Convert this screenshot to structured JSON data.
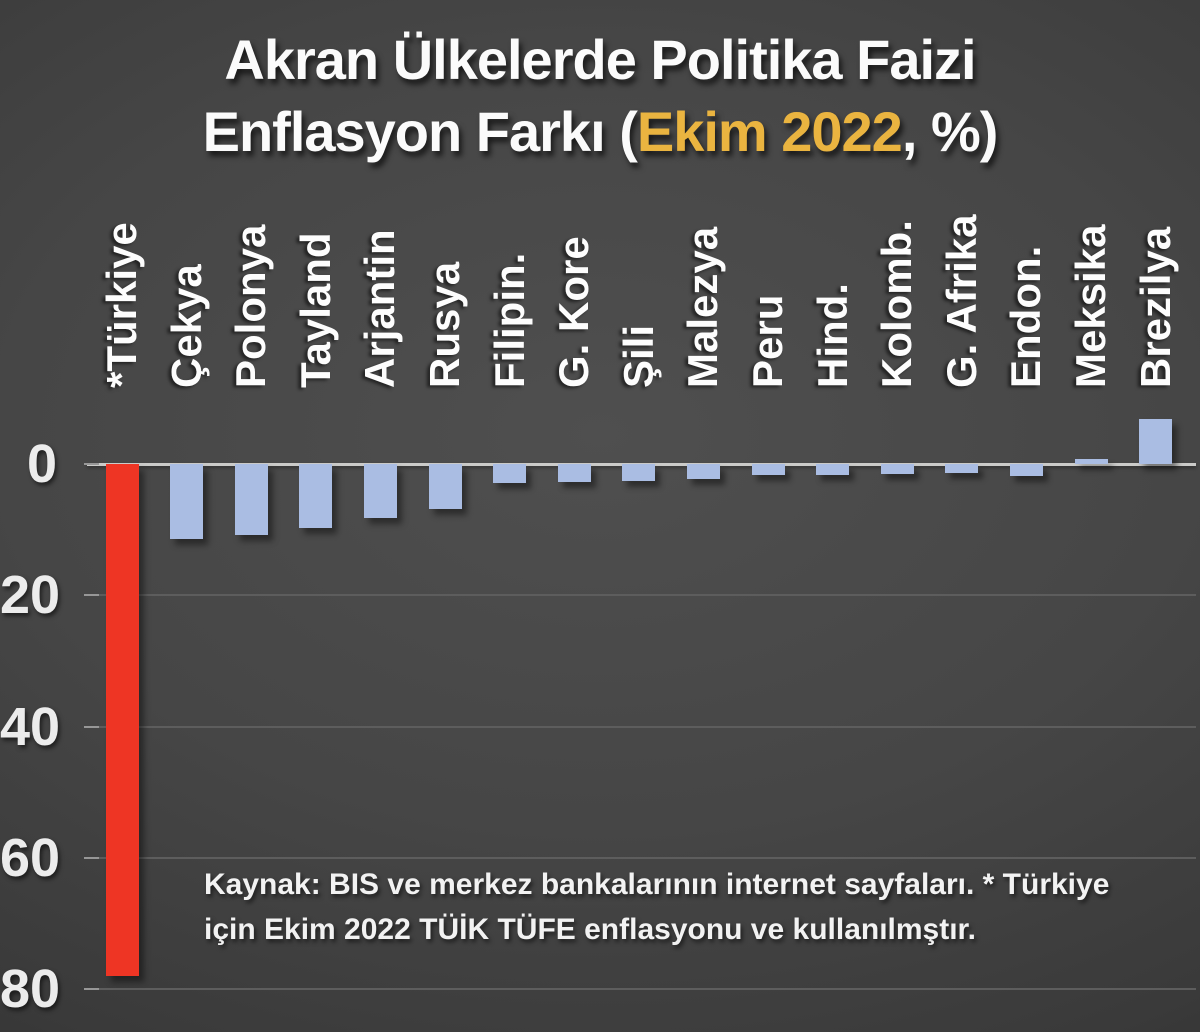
{
  "title": {
    "line1": "Akran Ülkelerde Politika Faizi",
    "line2_prefix": "Enflasyon Farkı (",
    "line2_highlight": "Ekim 2022",
    "line2_suffix": ", %)"
  },
  "source_note": {
    "line1": "Kaynak: BIS ve merkez bankalarının internet sayfaları. * Türkiye",
    "line2": "için Ekim 2022 TÜİK TÜFE enflasyonu ve kullanılmştır."
  },
  "colors": {
    "background": "#3f3f3f",
    "title_text": "#fbfbfb",
    "title_highlight": "#eab440",
    "highlight_bar": "#ee3524",
    "default_bar": "#aabde3",
    "zero_line": "#cbcbc9",
    "gridline": "#5d5d5d",
    "tick": "#979797",
    "axis_label": "#ececec"
  },
  "chart_data": {
    "type": "bar",
    "title": "Akran Ülkelerde Politika Faizi Enflasyon Farkı (Ekim 2022, %)",
    "xlabel": "",
    "ylabel": "",
    "categories": [
      "*Türkiye",
      "Çekya",
      "Polonya",
      "Tayland",
      "Arjantin",
      "Rusya",
      "Filipin.",
      "G. Kore",
      "Şili",
      "Malezya",
      "Peru",
      "Hind.",
      "Kolomb.",
      "G. Afrika",
      "Endon.",
      "Meksika",
      "Brezilya"
    ],
    "values": [
      -78,
      -11.4,
      -10.8,
      -9.7,
      -8.2,
      -6.8,
      -2.9,
      -2.8,
      -2.6,
      -2.3,
      -1.6,
      -1.6,
      -1.5,
      -1.4,
      -1.8,
      0.8,
      6.8
    ],
    "highlighted_category": "*Türkiye",
    "y_axis_ticks": [
      0,
      -20,
      -40,
      -60,
      -80
    ],
    "y_tick_labels": [
      "0",
      "20",
      "40",
      "60",
      "80"
    ],
    "ylim": [
      -85,
      10
    ],
    "grid": true,
    "legend": false,
    "x_labels_rotated_degrees": 90
  }
}
